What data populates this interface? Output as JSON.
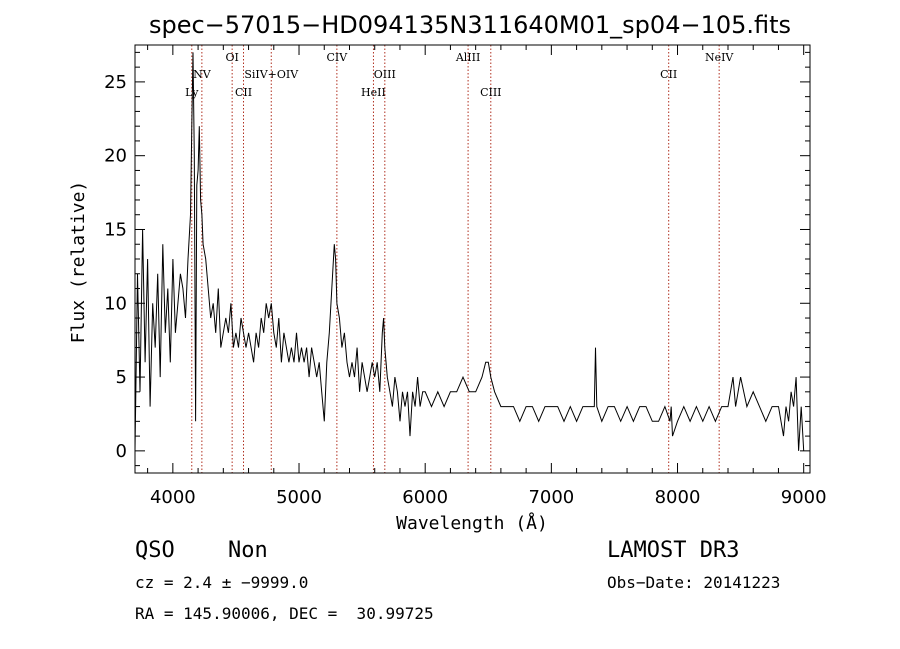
{
  "chart_data": {
    "type": "line",
    "title": "spec−57015−HD094135N311640M01_sp04−105.fits",
    "xlabel": "Wavelength (Å)",
    "ylabel": "Flux (relative)",
    "xlim": [
      3700,
      9050
    ],
    "ylim": [
      -1.5,
      27.5
    ],
    "x_ticks": [
      4000,
      5000,
      6000,
      7000,
      8000,
      9000
    ],
    "y_ticks": [
      0,
      5,
      10,
      15,
      20,
      25
    ],
    "series": [
      {
        "x": [
          3700,
          3720,
          3740,
          3760,
          3780,
          3800,
          3820,
          3840,
          3860,
          3880,
          3900,
          3920,
          3940,
          3960,
          3980,
          4000,
          4020,
          4040,
          4060,
          4080,
          4100,
          4120,
          4140,
          4150,
          4160,
          4170,
          4180,
          4190,
          4200,
          4210,
          4220,
          4230,
          4240,
          4260,
          4280,
          4300,
          4320,
          4340,
          4360,
          4380,
          4400,
          4420,
          4440,
          4460,
          4480,
          4500,
          4520,
          4540,
          4560,
          4580,
          4600,
          4620,
          4640,
          4660,
          4680,
          4700,
          4720,
          4740,
          4760,
          4780,
          4800,
          4820,
          4840,
          4860,
          4880,
          4900,
          4920,
          4940,
          4960,
          4980,
          5000,
          5020,
          5040,
          5060,
          5080,
          5100,
          5120,
          5140,
          5160,
          5180,
          5200,
          5220,
          5240,
          5260,
          5280,
          5290,
          5300,
          5320,
          5340,
          5360,
          5380,
          5400,
          5420,
          5440,
          5460,
          5480,
          5500,
          5520,
          5540,
          5560,
          5580,
          5600,
          5620,
          5640,
          5660,
          5670,
          5680,
          5700,
          5720,
          5740,
          5760,
          5780,
          5800,
          5820,
          5840,
          5860,
          5880,
          5900,
          5920,
          5940,
          5960,
          5980,
          6000,
          6050,
          6100,
          6150,
          6200,
          6250,
          6300,
          6350,
          6400,
          6450,
          6480,
          6500,
          6520,
          6550,
          6600,
          6650,
          6700,
          6750,
          6800,
          6850,
          6900,
          6950,
          7000,
          7050,
          7100,
          7150,
          7200,
          7250,
          7300,
          7340,
          7350,
          7360,
          7400,
          7450,
          7500,
          7550,
          7600,
          7650,
          7700,
          7750,
          7800,
          7850,
          7900,
          7940,
          7950,
          7960,
          8000,
          8050,
          8100,
          8150,
          8200,
          8250,
          8300,
          8350,
          8400,
          8420,
          8440,
          8460,
          8480,
          8500,
          8550,
          8600,
          8650,
          8700,
          8750,
          8800,
          8820,
          8840,
          8860,
          8880,
          8900,
          8920,
          8940,
          8960,
          8980,
          9000
        ],
        "y": [
          0,
          12,
          4,
          15,
          6,
          13,
          3,
          10,
          7,
          12,
          5,
          14,
          8,
          11,
          6,
          13,
          8,
          10,
          12,
          11,
          9,
          13,
          16,
          22,
          27,
          20,
          2,
          18,
          19,
          22,
          17,
          16,
          14,
          13,
          11,
          9,
          10,
          8,
          11,
          7,
          8,
          9,
          8,
          10,
          7,
          8,
          7,
          9,
          8,
          7,
          8,
          7,
          6,
          8,
          7,
          9,
          8,
          10,
          9,
          10,
          8,
          7,
          9,
          6,
          8,
          7,
          6,
          7,
          6,
          8,
          6,
          7,
          6,
          7,
          5,
          7,
          6,
          5,
          6,
          4,
          2,
          6,
          8,
          11,
          14,
          13,
          10,
          9,
          7,
          8,
          6,
          5,
          6,
          5,
          7,
          4,
          6,
          5,
          4,
          5,
          6,
          5,
          6,
          4,
          8,
          9,
          7,
          5,
          4,
          3,
          5,
          4,
          2,
          4,
          3,
          4,
          1,
          4,
          3,
          5,
          3,
          4,
          4,
          3,
          4,
          3,
          4,
          4,
          5,
          4,
          4,
          5,
          6,
          6,
          5,
          4,
          3,
          3,
          3,
          2,
          3,
          3,
          2,
          3,
          3,
          3,
          2,
          3,
          2,
          3,
          3,
          3,
          7,
          3,
          2,
          3,
          3,
          2,
          3,
          2,
          3,
          3,
          2,
          2,
          3,
          2,
          3,
          1,
          2,
          3,
          2,
          3,
          2,
          3,
          2,
          3,
          3,
          4,
          5,
          3,
          4,
          5,
          3,
          4,
          3,
          2,
          3,
          3,
          2,
          1,
          3,
          2,
          4,
          3,
          5,
          0,
          3,
          0
        ]
      }
    ],
    "lines": [
      {
        "name": "Ly",
        "x": 4150,
        "row": 3
      },
      {
        "name": "NV",
        "x": 4230,
        "row": 2
      },
      {
        "name": "OI",
        "x": 4470,
        "row": 1
      },
      {
        "name": "CII",
        "x": 4560,
        "row": 3
      },
      {
        "name": "SiIV+OIV",
        "x": 4780,
        "row": 2
      },
      {
        "name": "CIV",
        "x": 5300,
        "row": 1
      },
      {
        "name": "HeII",
        "x": 5590,
        "row": 3
      },
      {
        "name": "OIII",
        "x": 5680,
        "row": 2
      },
      {
        "name": "AlIII",
        "x": 6340,
        "row": 1
      },
      {
        "name": "CIII",
        "x": 6520,
        "row": 3
      },
      {
        "name": "CII",
        "x": 7930,
        "row": 2
      },
      {
        "name": "NeIV",
        "x": 8330,
        "row": 1
      }
    ],
    "colors": {
      "spectrum": "#000000",
      "lines": "#b03020",
      "axes": "#000000"
    },
    "grid": false
  },
  "info": {
    "class": "QSO",
    "subclass": "Non",
    "cz": "cz = 2.4 ± −9999.0",
    "radec": "RA = 145.90006, DEC =  30.99725",
    "survey": "LAMOST DR3",
    "obsdate": "Obs−Date: 20141223"
  }
}
